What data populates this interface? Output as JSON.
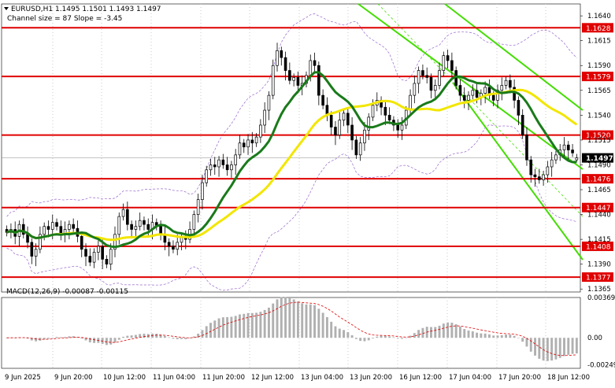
{
  "header": {
    "symbol_line": "EURUSD,H1  1.1495 1.1501 1.1493 1.1497",
    "channel_line": "Channel size = 87 Slope = -3.45"
  },
  "macd_label": "MACD(12,26,9) -0.00087 -0.00115",
  "colors": {
    "background": "#ffffff",
    "candle": "#000000",
    "level_line": "#e00000",
    "level_tag_bg": "#e00000",
    "level_tag_text": "#ffffff",
    "ma_fast": "#1a7a1a",
    "ma_slow": "#f2e600",
    "channel": "#44dd00",
    "envelope": "#9966cc",
    "macd_hist": "#b0b0b0",
    "macd_signal": "#e00000",
    "price_tag_bg": "#000000",
    "grid": "#c8c8c8"
  },
  "chart_data": {
    "type": "candlestick",
    "symbol": "EURUSD",
    "timeframe": "H1",
    "ohlc_last": {
      "open": 1.1495,
      "high": 1.1501,
      "low": 1.1493,
      "close": 1.1497
    },
    "current_price": "1.1497",
    "ylim": [
      1.1362,
      1.1652
    ],
    "y_ticks": [
      "1.1640",
      "1.1615",
      "1.1590",
      "1.1565",
      "1.1540",
      "1.1515",
      "1.1490",
      "1.1465",
      "1.1440",
      "1.1415",
      "1.1390",
      "1.1365"
    ],
    "x_ticks": [
      "9 Jun 2025",
      "9 Jun 20:00",
      "10 Jun 12:00",
      "11 Jun 04:00",
      "11 Jun 20:00",
      "12 Jun 12:00",
      "13 Jun 04:00",
      "13 Jun 20:00",
      "16 Jun 12:00",
      "17 Jun 04:00",
      "17 Jun 20:00",
      "18 Jun 12:00"
    ],
    "levels": [
      "1.1628",
      "1.1579",
      "1.1520",
      "1.1476",
      "1.1447",
      "1.1408",
      "1.1377"
    ],
    "close_series": [
      1.1422,
      1.1425,
      1.1418,
      1.143,
      1.142,
      1.1412,
      1.1398,
      1.1405,
      1.142,
      1.1428,
      1.1425,
      1.1432,
      1.1428,
      1.142,
      1.1425,
      1.143,
      1.1426,
      1.1418,
      1.1405,
      1.1398,
      1.1392,
      1.1402,
      1.1408,
      1.1395,
      1.139,
      1.1405,
      1.142,
      1.1438,
      1.1445,
      1.143,
      1.1425,
      1.1428,
      1.1434,
      1.143,
      1.1425,
      1.1432,
      1.1428,
      1.142,
      1.1412,
      1.1408,
      1.1405,
      1.1412,
      1.1418,
      1.1415,
      1.1425,
      1.144,
      1.1455,
      1.1472,
      1.1485,
      1.149,
      1.1488,
      1.1495,
      1.149,
      1.1485,
      1.149,
      1.15,
      1.1512,
      1.1508,
      1.1515,
      1.1512,
      1.1518,
      1.153,
      1.1545,
      1.156,
      1.159,
      1.1605,
      1.1598,
      1.1585,
      1.1575,
      1.1578,
      1.157,
      1.1572,
      1.158,
      1.1595,
      1.159,
      1.156,
      1.155,
      1.154,
      1.1528,
      1.152,
      1.1535,
      1.1542,
      1.153,
      1.1515,
      1.15,
      1.1512,
      1.1525,
      1.1538,
      1.155,
      1.1555,
      1.1548,
      1.154,
      1.1535,
      1.153,
      1.1525,
      1.153,
      1.1545,
      1.156,
      1.1572,
      1.1585,
      1.158,
      1.1578,
      1.1565,
      1.157,
      1.1585,
      1.16,
      1.1595,
      1.1585,
      1.157,
      1.156,
      1.1555,
      1.156,
      1.1565,
      1.1558,
      1.1562,
      1.1568,
      1.156,
      1.1555,
      1.1565,
      1.157,
      1.1575,
      1.1568,
      1.1555,
      1.154,
      1.152,
      1.1495,
      1.148,
      1.1478,
      1.1475,
      1.148,
      1.1488,
      1.1495,
      1.15,
      1.1505,
      1.151,
      1.1505,
      1.1502,
      1.1497
    ],
    "macd": {
      "value": -0.00087,
      "signal": -0.00115,
      "ylim": [
        -0.0028,
        0.0037
      ],
      "y_ticks": [
        "0.00369",
        "0.00",
        "-0.00249"
      ]
    },
    "channel_size": 87,
    "slope": -3.45
  }
}
